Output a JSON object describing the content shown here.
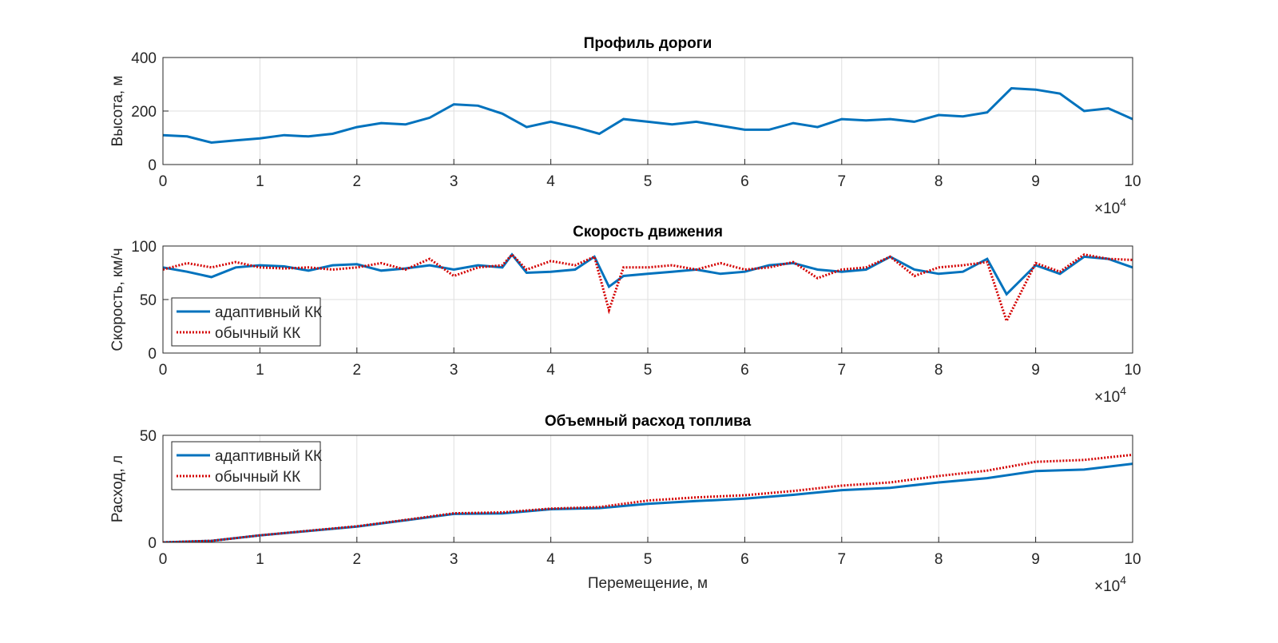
{
  "chart_data": [
    {
      "type": "line",
      "title": "Профиль дороги",
      "y_label": "Высота, м",
      "x_multiplier": {
        "base": "×10",
        "exponent": "4"
      },
      "x": [
        0,
        0.25,
        0.5,
        0.75,
        1,
        1.25,
        1.5,
        1.75,
        2,
        2.25,
        2.5,
        2.75,
        3,
        3.25,
        3.5,
        3.75,
        4,
        4.25,
        4.5,
        4.75,
        5,
        5.25,
        5.5,
        5.75,
        6,
        6.25,
        6.5,
        6.75,
        7,
        7.25,
        7.5,
        7.75,
        8,
        8.25,
        8.5,
        8.75,
        9,
        9.25,
        9.5,
        9.75,
        10
      ],
      "series": [
        {
          "color": "#0072BD",
          "style": "solid",
          "values": [
            110,
            105,
            82,
            90,
            98,
            110,
            105,
            115,
            140,
            155,
            150,
            175,
            225,
            220,
            190,
            140,
            160,
            140,
            115,
            170,
            160,
            150,
            160,
            145,
            130,
            130,
            155,
            140,
            170,
            165,
            170,
            160,
            185,
            180,
            195,
            285,
            280,
            265,
            200,
            210,
            170
          ]
        }
      ],
      "xlim": [
        0,
        10
      ],
      "xticks": [
        0,
        1,
        2,
        3,
        4,
        5,
        6,
        7,
        8,
        9,
        10
      ],
      "ylim": [
        0,
        400
      ],
      "yticks": [
        0,
        200,
        400
      ],
      "grid": true
    },
    {
      "type": "line",
      "title": "Скорость движения",
      "y_label": "Скорость, км/ч",
      "x_multiplier": {
        "base": "×10",
        "exponent": "4"
      },
      "x": [
        0,
        0.25,
        0.5,
        0.75,
        1,
        1.25,
        1.5,
        1.75,
        2,
        2.25,
        2.5,
        2.75,
        3,
        3.25,
        3.5,
        3.6,
        3.75,
        4,
        4.25,
        4.45,
        4.6,
        4.75,
        5,
        5.25,
        5.5,
        5.75,
        6,
        6.25,
        6.5,
        6.75,
        7,
        7.25,
        7.5,
        7.75,
        8,
        8.25,
        8.5,
        8.7,
        9,
        9.25,
        9.5,
        9.75,
        10
      ],
      "series": [
        {
          "name": "адаптивный КК",
          "color": "#0072BD",
          "style": "solid",
          "values": [
            80,
            76,
            71,
            80,
            82,
            81,
            77,
            82,
            83,
            77,
            79,
            82,
            78,
            82,
            80,
            92,
            75,
            76,
            78,
            90,
            62,
            72,
            74,
            76,
            78,
            74,
            76,
            82,
            84,
            78,
            76,
            78,
            90,
            78,
            74,
            76,
            88,
            55,
            82,
            74,
            90,
            88,
            80
          ]
        },
        {
          "name": "обычный КК",
          "color": "#D40000",
          "style": "dotted",
          "values": [
            78,
            84,
            80,
            85,
            80,
            79,
            80,
            78,
            80,
            84,
            78,
            88,
            72,
            80,
            82,
            92,
            78,
            86,
            82,
            90,
            40,
            80,
            80,
            82,
            78,
            84,
            78,
            80,
            85,
            70,
            78,
            80,
            90,
            72,
            80,
            82,
            85,
            30,
            84,
            76,
            92,
            88,
            87
          ]
        }
      ],
      "xlim": [
        0,
        10
      ],
      "xticks": [
        0,
        1,
        2,
        3,
        4,
        5,
        6,
        7,
        8,
        9,
        10
      ],
      "ylim": [
        0,
        100
      ],
      "yticks": [
        0,
        50,
        100
      ],
      "grid": true,
      "legend": "bottom-left"
    },
    {
      "type": "line",
      "title": "Объемный расход топлива",
      "y_label": "Расход, л",
      "x_label": "Перемещение, м",
      "x_multiplier": {
        "base": "×10",
        "exponent": "4"
      },
      "x": [
        0,
        0.5,
        1,
        1.5,
        2,
        2.5,
        3,
        3.5,
        4,
        4.5,
        5,
        5.5,
        6,
        6.5,
        7,
        7.5,
        8,
        8.5,
        9,
        9.5,
        10
      ],
      "series": [
        {
          "name": "адаптивный КК",
          "color": "#0072BD",
          "style": "solid",
          "values": [
            0,
            0.7,
            3.3,
            5.3,
            7.4,
            10.3,
            13.3,
            13.5,
            15.5,
            16,
            18,
            19.3,
            20.4,
            22.2,
            24.4,
            25.5,
            28,
            30,
            33.3,
            34,
            36.7
          ]
        },
        {
          "name": "обычный КК",
          "color": "#D40000",
          "style": "dotted",
          "values": [
            0,
            0.7,
            3.3,
            5.4,
            7.5,
            10.5,
            13.6,
            14,
            15.8,
            16.5,
            19.5,
            21,
            22,
            24,
            26.5,
            28,
            31,
            33.5,
            37.6,
            38.5,
            40.9
          ]
        }
      ],
      "xlim": [
        0,
        10
      ],
      "xticks": [
        0,
        1,
        2,
        3,
        4,
        5,
        6,
        7,
        8,
        9,
        10
      ],
      "ylim": [
        0,
        50
      ],
      "yticks": [
        0,
        50
      ],
      "grid": true,
      "legend": "top-left"
    }
  ]
}
